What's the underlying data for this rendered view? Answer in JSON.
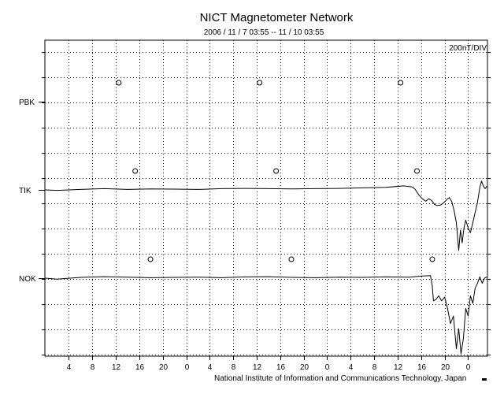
{
  "chart_data": {
    "type": "line",
    "title": "NICT Magnetometer Network",
    "subtitle": "2006 / 11 /  7   03:55 -- 11 / 10   03:55",
    "scale_label": "200nT/DIV",
    "footer": "National Institute of Information and Communications Technology, Japan",
    "x_tick_labels": [
      "4",
      "8",
      "12",
      "16",
      "20",
      "0",
      "4",
      "8",
      "12",
      "16",
      "20",
      "0",
      "4",
      "8",
      "12",
      "16",
      "20",
      "0"
    ],
    "x_tick_hours": [
      4,
      8,
      12,
      16,
      20,
      24,
      28,
      32,
      36,
      40,
      44,
      48,
      52,
      56,
      60,
      64,
      68,
      72
    ],
    "x_range_hours": [
      -0.08,
      75.3
    ],
    "grid": true,
    "stations": [
      {
        "name": "PBK",
        "marker_hours": [
          12.5,
          36.5,
          60.5
        ],
        "values": []
      },
      {
        "name": "TIK",
        "marker_hours": [
          15.3,
          39.3,
          63.3
        ],
        "values": [
          [
            0,
            0
          ],
          [
            2,
            -0.02
          ],
          [
            6,
            0.02
          ],
          [
            10,
            0.05
          ],
          [
            14,
            0.02
          ],
          [
            18,
            0.04
          ],
          [
            22,
            0.03
          ],
          [
            26,
            0.02
          ],
          [
            30,
            0.05
          ],
          [
            34,
            0.06
          ],
          [
            38,
            0.05
          ],
          [
            42,
            0.04
          ],
          [
            46,
            0.05
          ],
          [
            50,
            0.06
          ],
          [
            54,
            0.08
          ],
          [
            58,
            0.1
          ],
          [
            61,
            0.16
          ],
          [
            62.5,
            0.12
          ],
          [
            63,
            0.02
          ],
          [
            63.6,
            -0.2
          ],
          [
            64.2,
            -0.35
          ],
          [
            64.8,
            -0.45
          ],
          [
            65.3,
            -0.35
          ],
          [
            65.8,
            -0.42
          ],
          [
            66.3,
            -0.58
          ],
          [
            66.8,
            -0.62
          ],
          [
            67.3,
            -0.6
          ],
          [
            67.8,
            -0.52
          ],
          [
            68.3,
            -0.4
          ],
          [
            68.8,
            -0.3
          ],
          [
            69.2,
            -0.45
          ],
          [
            69.6,
            -0.8
          ],
          [
            70,
            -1.3
          ],
          [
            70.4,
            -2.4
          ],
          [
            70.7,
            -1.6
          ],
          [
            71,
            -2.1
          ],
          [
            71.3,
            -1.5
          ],
          [
            71.6,
            -1.2
          ],
          [
            72,
            -1.5
          ],
          [
            72.4,
            -1.7
          ],
          [
            72.8,
            -1.3
          ],
          [
            73.2,
            -0.9
          ],
          [
            73.6,
            -0.5
          ],
          [
            74,
            0.1
          ],
          [
            74.3,
            0.35
          ],
          [
            74.6,
            0.15
          ],
          [
            74.9,
            0.05
          ],
          [
            75.2,
            0.15
          ]
        ]
      },
      {
        "name": "NOK",
        "marker_hours": [
          17.9,
          41.9,
          65.9
        ],
        "values": [
          [
            0,
            0
          ],
          [
            2,
            -0.04
          ],
          [
            6,
            0.03
          ],
          [
            10,
            0.06
          ],
          [
            14,
            0.04
          ],
          [
            18,
            0.02
          ],
          [
            22,
            0.03
          ],
          [
            26,
            0.04
          ],
          [
            30,
            0.02
          ],
          [
            34,
            0.05
          ],
          [
            38,
            0.06
          ],
          [
            42,
            0.03
          ],
          [
            46,
            0.02
          ],
          [
            50,
            0.04
          ],
          [
            54,
            0.03
          ],
          [
            58,
            0.05
          ],
          [
            62,
            0.04
          ],
          [
            64,
            0.08
          ],
          [
            65.6,
            0.1
          ],
          [
            65.9,
            -0.3
          ],
          [
            66.1,
            -0.9
          ],
          [
            66.5,
            -0.85
          ],
          [
            67,
            -0.7
          ],
          [
            67.5,
            -0.9
          ],
          [
            68,
            -0.75
          ],
          [
            68.5,
            -1.2
          ],
          [
            69,
            -1.8
          ],
          [
            69.5,
            -1.5
          ],
          [
            70,
            -2.8
          ],
          [
            70.4,
            -2.0
          ],
          [
            70.8,
            -3.0
          ],
          [
            71.2,
            -2.4
          ],
          [
            71.6,
            -1.2
          ],
          [
            72,
            -1.5
          ],
          [
            72.4,
            -0.7
          ],
          [
            72.8,
            -1.0
          ],
          [
            73.2,
            -0.4
          ],
          [
            73.6,
            -0.2
          ],
          [
            74,
            0.05
          ],
          [
            74.4,
            -0.2
          ],
          [
            74.8,
            0.0
          ],
          [
            75.2,
            0.05
          ]
        ]
      }
    ]
  }
}
